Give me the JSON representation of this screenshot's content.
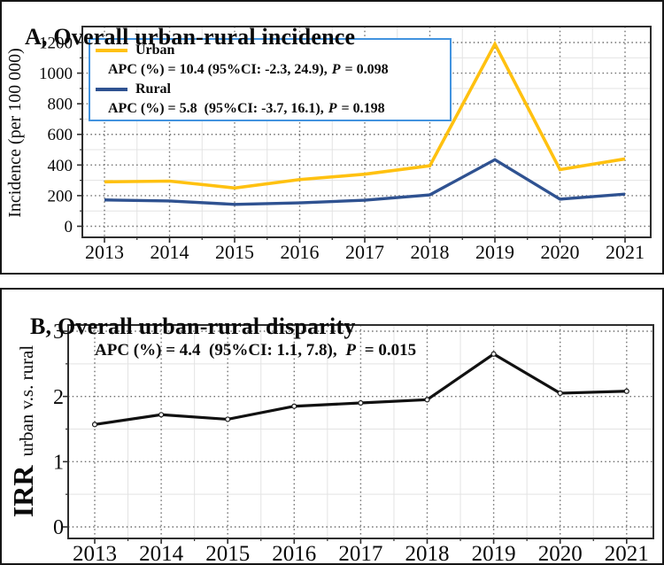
{
  "panelA": {
    "title": "A, Overall urban-rural incidence",
    "ylabel": "Incidence (per 100 000)",
    "legend": {
      "urban_label": "Urban",
      "urban_apc": "APC (%) = 10.4 (95%CI: -2.3, 24.9),",
      "urban_p": "P",
      "urban_pval": "= 0.098",
      "rural_label": "Rural",
      "rural_apc": "APC (%) = 5.8  (95%CI: -3.7, 16.1),",
      "rural_p": "P",
      "rural_pval": "= 0.198"
    }
  },
  "panelB": {
    "title": "B, Overall urban-rural disparity",
    "ylabel_main": "IRR",
    "ylabel_sub": "urban v.s. rural",
    "apc": "APC (%) = 4.4  (95%CI: 1.1, 7.8),",
    "p": "P",
    "pval": "= 0.015"
  },
  "colors": {
    "urban_line": "#FFC110",
    "rural_line": "#2F5291",
    "irr_line": "#111111",
    "legend_border": "#4293DF",
    "major_grid": "#6f6f6f",
    "minor_grid": "#e3e3e3",
    "plot_border": "#2e2e2e",
    "panel_border": "#161616",
    "text": "#0a0a0a"
  },
  "chart_data": [
    {
      "type": "line",
      "title": "A, Overall urban-rural incidence",
      "xlabel": "",
      "ylabel": "Incidence (per 100 000)",
      "x": [
        "2013",
        "2014",
        "2015",
        "2016",
        "2017",
        "2018",
        "2019",
        "2020",
        "2021"
      ],
      "yticks": [
        0,
        200,
        400,
        600,
        800,
        1000,
        1200
      ],
      "ylim": [
        0,
        1200
      ],
      "grid": "major dotted + minor light",
      "legend_position": "upper left inset box",
      "series": [
        {
          "name": "Urban",
          "color": "#FFC110",
          "width": 3.6,
          "marker": false,
          "values": [
            290,
            295,
            250,
            305,
            340,
            395,
            1190,
            370,
            440
          ]
        },
        {
          "name": "Rural",
          "color": "#2F5291",
          "width": 3.4,
          "marker": false,
          "values": [
            172,
            165,
            143,
            153,
            170,
            205,
            435,
            177,
            210
          ]
        }
      ],
      "annotations": [
        "APC (%) = 10.4 (95%CI: -2.3, 24.9), P = 0.098",
        "APC (%) = 5.8 (95%CI: -3.7, 16.1), P = 0.198"
      ]
    },
    {
      "type": "line",
      "title": "B, Overall urban-rural disparity",
      "xlabel": "",
      "ylabel": "IRR urban v.s. rural",
      "x": [
        "2013",
        "2014",
        "2015",
        "2016",
        "2017",
        "2018",
        "2019",
        "2020",
        "2021"
      ],
      "yticks": [
        0,
        1,
        2,
        3
      ],
      "ylim": [
        0,
        3
      ],
      "grid": "major dotted + minor light",
      "legend_position": "none",
      "series": [
        {
          "name": "IRR",
          "color": "#111111",
          "width": 3.2,
          "marker": true,
          "values": [
            1.57,
            1.72,
            1.65,
            1.85,
            1.9,
            1.95,
            2.65,
            2.05,
            2.08
          ]
        }
      ],
      "annotations": [
        "APC (%) = 4.4 (95%CI: 1.1, 7.8), P = 0.015"
      ]
    }
  ]
}
